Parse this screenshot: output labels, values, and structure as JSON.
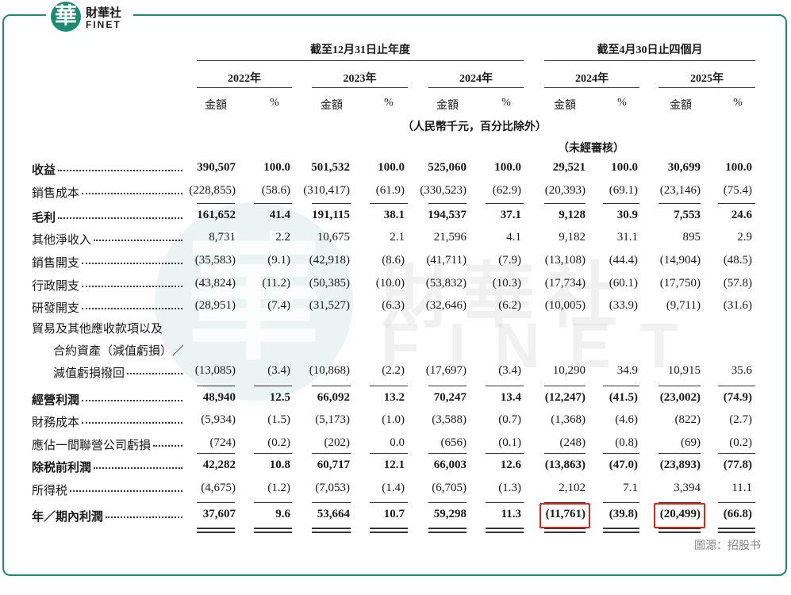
{
  "logo": {
    "mark": "華",
    "name": "財華社",
    "en": "FINET"
  },
  "column_groups": [
    {
      "title": "截至12月31日止年度",
      "years": [
        "2022年",
        "2023年",
        "2024年"
      ]
    },
    {
      "title": "截至4月30日止四個月",
      "years": [
        "2024年",
        "2025年"
      ]
    }
  ],
  "amount_label": "金額",
  "pct_label": "%",
  "unit_note": "（人民幣千元，百分比除外）",
  "unaudited_note": "（未經審核）",
  "rows": [
    {
      "label": "收益",
      "bold": true,
      "values": [
        "390,507",
        "100.0",
        "501,532",
        "100.0",
        "525,060",
        "100.0",
        "29,521",
        "100.0",
        "30,699",
        "100.0"
      ]
    },
    {
      "label": "銷售成本",
      "values": [
        "(228,855)",
        "(58.6)",
        "(310,417)",
        "(61.9)",
        "(330,523)",
        "(62.9)",
        "(20,393)",
        "(69.1)",
        "(23,146)",
        "(75.4)"
      ]
    },
    {
      "label": "毛利",
      "bold": true,
      "rule": true,
      "values": [
        "161,652",
        "41.4",
        "191,115",
        "38.1",
        "194,537",
        "37.1",
        "9,128",
        "30.9",
        "7,553",
        "24.6"
      ]
    },
    {
      "label": "其他淨收入",
      "values": [
        "8,731",
        "2.2",
        "10,675",
        "2.1",
        "21,596",
        "4.1",
        "9,182",
        "31.1",
        "895",
        "2.9"
      ]
    },
    {
      "label": "銷售開支",
      "values": [
        "(35,583)",
        "(9.1)",
        "(42,918)",
        "(8.6)",
        "(41,711)",
        "(7.9)",
        "(13,108)",
        "(44.4)",
        "(14,904)",
        "(48.5)"
      ]
    },
    {
      "label": "行政開支",
      "values": [
        "(43,824)",
        "(11.2)",
        "(50,385)",
        "(10.0)",
        "(53,832)",
        "(10.3)",
        "(17,734)",
        "(60.1)",
        "(17,750)",
        "(57.8)"
      ]
    },
    {
      "label": "研發開支",
      "values": [
        "(28,951)",
        "(7.4)",
        "(31,527)",
        "(6.3)",
        "(32,646)",
        "(6.2)",
        "(10,005)",
        "(33.9)",
        "(9,711)",
        "(31.6)"
      ]
    },
    {
      "label": [
        "貿易及其他應收款項以及",
        "合約資產（減值虧損）／",
        "減值虧損撥回"
      ],
      "values": [
        "(13,085)",
        "(3.4)",
        "(10,868)",
        "(2.2)",
        "(17,697)",
        "(3.4)",
        "10,290",
        "34.9",
        "10,915",
        "35.6"
      ]
    },
    {
      "label": "經營利潤",
      "bold": true,
      "rule": true,
      "values": [
        "48,940",
        "12.5",
        "66,092",
        "13.2",
        "70,247",
        "13.4",
        "(12,247)",
        "(41.5)",
        "(23,002)",
        "(74.9)"
      ]
    },
    {
      "label": "財務成本",
      "values": [
        "(5,934)",
        "(1.5)",
        "(5,173)",
        "(1.0)",
        "(3,588)",
        "(0.7)",
        "(1,368)",
        "(4.6)",
        "(822)",
        "(2.7)"
      ]
    },
    {
      "label": "應佔一間聯營公司虧損",
      "values": [
        "(724)",
        "(0.2)",
        "(202)",
        "0.0",
        "(656)",
        "(0.1)",
        "(248)",
        "(0.8)",
        "(69)",
        "(0.2)"
      ]
    },
    {
      "label": "除税前利潤",
      "bold": true,
      "rule": true,
      "values": [
        "42,282",
        "10.8",
        "60,717",
        "12.1",
        "66,003",
        "12.6",
        "(13,863)",
        "(47.0)",
        "(23,893)",
        "(77.8)"
      ]
    },
    {
      "label": "所得税",
      "values": [
        "(4,675)",
        "(1.2)",
        "(7,053)",
        "(1.4)",
        "(6,705)",
        "(1.3)",
        "2,102",
        "7.1",
        "3,394",
        "11.1"
      ]
    },
    {
      "label": "年／期內利潤",
      "bold": true,
      "rule": true,
      "double_rule": true,
      "highlight": [
        6,
        8
      ],
      "values": [
        "37,607",
        "9.6",
        "53,664",
        "10.7",
        "59,298",
        "11.3",
        "(11,761)",
        "(39.8)",
        "(20,499)",
        "(66.8)"
      ]
    }
  ],
  "source": "圖源：招股书"
}
